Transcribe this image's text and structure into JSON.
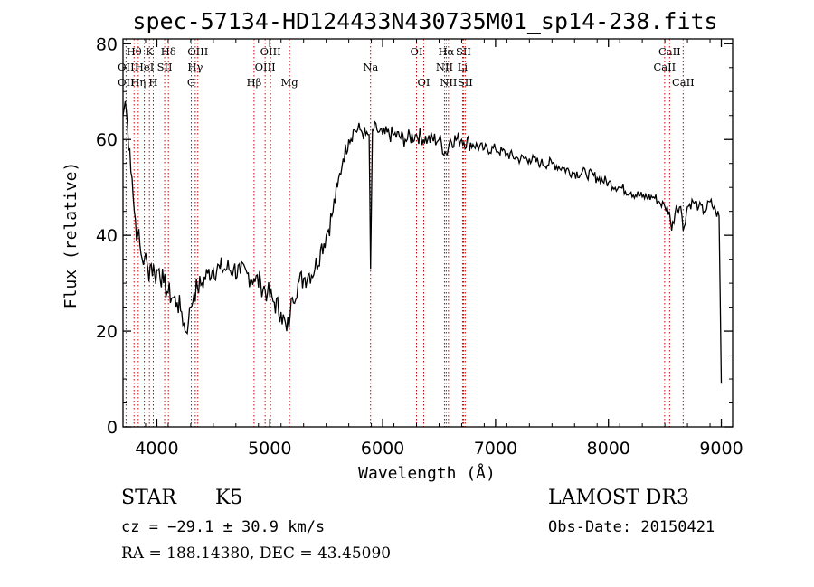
{
  "chart_data": {
    "type": "line",
    "title": "spec-57134-HD124433N430735M01_sp14-238.fits",
    "xlabel": "Wavelength (Å)",
    "ylabel": "Flux (relative)",
    "xlim": [
      3700,
      9100
    ],
    "ylim": [
      0,
      81
    ],
    "x_ticks": [
      "4000",
      "5000",
      "6000",
      "7000",
      "8000",
      "9000"
    ],
    "y_ticks": [
      "0",
      "20",
      "40",
      "60",
      "80"
    ],
    "grid": false,
    "legend": "none",
    "line_color": "#000000",
    "marker_color": "#cc0000",
    "series": [
      {
        "x": [
          3700,
          3720,
          3740,
          3760,
          3780,
          3800,
          3830,
          3860,
          3890,
          3920,
          3950,
          3980,
          4020,
          4060,
          4100,
          4140,
          4180,
          4220,
          4250,
          4280,
          4300,
          4330,
          4360,
          4400,
          4450,
          4500,
          4560,
          4620,
          4680,
          4740,
          4800,
          4860,
          4920,
          4980,
          5040,
          5100,
          5150,
          5180,
          5200,
          5250,
          5300,
          5350,
          5400,
          5450,
          5500,
          5550,
          5600,
          5650,
          5700,
          5750,
          5800,
          5850,
          5880,
          5893,
          5910,
          5950,
          6000,
          6100,
          6200,
          6300,
          6400,
          6500,
          6563,
          6600,
          6700,
          6800,
          6900,
          7000,
          7100,
          7200,
          7300,
          7400,
          7500,
          7600,
          7700,
          7800,
          7900,
          8000,
          8100,
          8200,
          8300,
          8400,
          8450,
          8500,
          8540,
          8560,
          8600,
          8640,
          8662,
          8700,
          8750,
          8800,
          8850,
          8900,
          8950,
          8980,
          9000
        ],
        "y": [
          65,
          68,
          63,
          58,
          52,
          45,
          40,
          36,
          35,
          33,
          34,
          32,
          33,
          30,
          28,
          27,
          26,
          24,
          20,
          22,
          25,
          28,
          29,
          30,
          32,
          33,
          33,
          33,
          33,
          32,
          32,
          31,
          30,
          28,
          26,
          24,
          20,
          23,
          27,
          30,
          31,
          32,
          33,
          37,
          40,
          44,
          50,
          56,
          60,
          62,
          62,
          61,
          61,
          33,
          62,
          62,
          61,
          61,
          60,
          61,
          60,
          60,
          57,
          60,
          60,
          59,
          58,
          58,
          57,
          56,
          56,
          55,
          55,
          54,
          53,
          53,
          52,
          51,
          50,
          49,
          48,
          48,
          47,
          46,
          45,
          41,
          46,
          46,
          41,
          46,
          47,
          46,
          45,
          47,
          45,
          44,
          9
        ]
      }
    ],
    "lines_top": [
      {
        "label": "Hθ",
        "wl": 3798,
        "row": 0
      },
      {
        "label": "OII",
        "wl": 3727,
        "row": 1
      },
      {
        "label": "OII",
        "wl": 3727,
        "row": 2
      },
      {
        "label": "K",
        "wl": 3934,
        "row": 0
      },
      {
        "label": "HeI",
        "wl": 3889,
        "row": 1
      },
      {
        "label": "Hη",
        "wl": 3835,
        "row": 2
      },
      {
        "label": "SII",
        "wl": 4069,
        "row": 1
      },
      {
        "label": "H",
        "wl": 3968,
        "row": 2
      },
      {
        "label": "Hδ",
        "wl": 4102,
        "row": 0
      },
      {
        "label": "OIII",
        "wl": 4363,
        "row": 0
      },
      {
        "label": "Hγ",
        "wl": 4340,
        "row": 1
      },
      {
        "label": "G",
        "wl": 4305,
        "row": 2
      },
      {
        "label": "Hβ",
        "wl": 4861,
        "row": 2
      },
      {
        "label": "OIII",
        "wl": 5007,
        "row": 0
      },
      {
        "label": "OIII",
        "wl": 4959,
        "row": 1
      },
      {
        "label": "Mg",
        "wl": 5175,
        "row": 2
      },
      {
        "label": "Na",
        "wl": 5893,
        "row": 1
      },
      {
        "label": "OI",
        "wl": 6300,
        "row": 0
      },
      {
        "label": "OI",
        "wl": 6364,
        "row": 2
      },
      {
        "label": "Hα",
        "wl": 6563,
        "row": 0
      },
      {
        "label": "SII",
        "wl": 6716,
        "row": 0
      },
      {
        "label": "NII",
        "wl": 6548,
        "row": 1
      },
      {
        "label": "Li",
        "wl": 6708,
        "row": 1
      },
      {
        "label": "NII",
        "wl": 6583,
        "row": 2
      },
      {
        "label": "SII",
        "wl": 6731,
        "row": 2
      },
      {
        "label": "CaII",
        "wl": 8542,
        "row": 0
      },
      {
        "label": "CaII",
        "wl": 8498,
        "row": 1
      },
      {
        "label": "CaII",
        "wl": 8662,
        "row": 2
      }
    ],
    "marker_wavelengths": [
      3727,
      3798,
      3835,
      3889,
      3934,
      3968,
      4069,
      4102,
      4305,
      4340,
      4363,
      4861,
      4959,
      5007,
      5175,
      5893,
      6300,
      6364,
      6548,
      6563,
      6583,
      6708,
      6716,
      6731,
      8498,
      8542,
      8662
    ]
  },
  "info": {
    "object_class": "STAR",
    "subclass": "K5",
    "survey": "LAMOST DR3",
    "cz": "cz = −29.1 ± 30.9 km/s",
    "obs_date": "Obs-Date: 20150421",
    "coords": "RA = 188.14380, DEC =  43.45090"
  }
}
